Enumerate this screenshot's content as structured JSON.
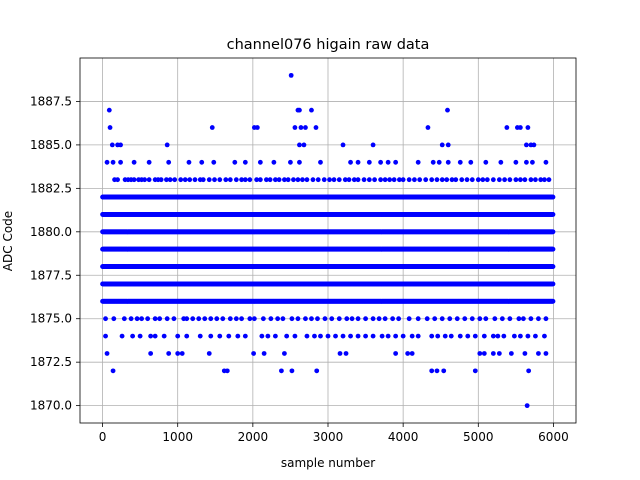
{
  "chart_data": {
    "type": "scatter",
    "title": "channel076 higain raw data",
    "xlabel": "sample number",
    "ylabel": "ADC Code",
    "xlim": [
      -300,
      6300
    ],
    "ylim": [
      1869.0,
      1890.0
    ],
    "xticks": [
      0,
      1000,
      2000,
      3000,
      4000,
      5000,
      6000
    ],
    "xtick_labels": [
      "0",
      "1000",
      "2000",
      "3000",
      "4000",
      "5000",
      "6000"
    ],
    "yticks": [
      1870.0,
      1872.5,
      1875.0,
      1877.5,
      1880.0,
      1882.5,
      1885.0,
      1887.5
    ],
    "ytick_labels": [
      "1870.0",
      "1872.5",
      "1875.0",
      "1877.5",
      "1880.0",
      "1882.5",
      "1885.0",
      "1887.5"
    ],
    "grid": true,
    "marker_color": "#0000ff",
    "n_samples": 6000,
    "value_levels": [
      {
        "adc": 1876,
        "spacing": 1
      },
      {
        "adc": 1877,
        "spacing": 1
      },
      {
        "adc": 1878,
        "spacing": 1
      },
      {
        "adc": 1879,
        "spacing": 1
      },
      {
        "adc": 1880,
        "spacing": 1
      },
      {
        "adc": 1881,
        "spacing": 1
      },
      {
        "adc": 1882,
        "spacing": 1
      }
    ],
    "sparse_points": {
      "1883": [
        160,
        200,
        300,
        340,
        380,
        420,
        480,
        520,
        560,
        620,
        700,
        740,
        780,
        850,
        900,
        960,
        1040,
        1100,
        1160,
        1230,
        1300,
        1340,
        1420,
        1490,
        1560,
        1640,
        1700,
        1780,
        1850,
        1900,
        1960,
        2050,
        2100,
        2180,
        2230,
        2300,
        2350,
        2420,
        2470,
        2540,
        2600,
        2660,
        2720,
        2800,
        2870,
        2950,
        3020,
        3080,
        3150,
        3230,
        3280,
        3350,
        3400,
        3480,
        3550,
        3620,
        3700,
        3760,
        3820,
        3880,
        3950,
        4000,
        4080,
        4150,
        4220,
        4300,
        4380,
        4450,
        4520,
        4580,
        4650,
        4700,
        4780,
        4850,
        4920,
        5000,
        5060,
        5120,
        5200,
        5280,
        5350,
        5420,
        5500,
        5560,
        5620,
        5700,
        5760,
        5830,
        5880,
        5940
      ],
      "1875": [
        40,
        150,
        290,
        380,
        460,
        520,
        600,
        700,
        760,
        860,
        950,
        1080,
        1120,
        1200,
        1280,
        1360,
        1440,
        1520,
        1600,
        1700,
        1780,
        1850,
        1960,
        2020,
        2140,
        2240,
        2330,
        2400,
        2520,
        2600,
        2700,
        2780,
        2860,
        2960,
        3050,
        3150,
        3250,
        3320,
        3400,
        3500,
        3600,
        3680,
        3760,
        3860,
        3940,
        4080,
        4200,
        4320,
        4420,
        4520,
        4620,
        4720,
        4820,
        4920,
        5020,
        5100,
        5220,
        5320,
        5420,
        5540,
        5600,
        5700,
        5800,
        5900
      ],
      "1884": [
        60,
        140,
        240,
        420,
        620,
        880,
        1150,
        1320,
        1480,
        1760,
        1900,
        2100,
        2280,
        2500,
        2620,
        2900,
        3300,
        3400,
        3550,
        3700,
        3800,
        3900,
        4200,
        4400,
        4480,
        4600,
        4760,
        4900,
        5100,
        5300,
        5500,
        5640,
        5720,
        5900
      ],
      "1874": [
        40,
        260,
        400,
        500,
        640,
        700,
        820,
        1000,
        1120,
        1300,
        1440,
        1560,
        1680,
        1800,
        1900,
        2120,
        2200,
        2300,
        2450,
        2560,
        2720,
        2820,
        2900,
        3000,
        3100,
        3200,
        3300,
        3400,
        3500,
        3600,
        3720,
        3800,
        3900,
        4000,
        4120,
        4200,
        4380,
        4460,
        4560,
        4640,
        4760,
        4860,
        4960,
        5080,
        5200,
        5260,
        5340,
        5480,
        5560,
        5660,
        5760,
        5880
      ],
      "1873": [
        60,
        640,
        880,
        1000,
        1060,
        1420,
        2010,
        2150,
        2420,
        3160,
        3240,
        3900,
        4060,
        4120,
        5020,
        5080,
        5200,
        5280,
        5440,
        5620,
        5800,
        5900
      ],
      "1885": [
        130,
        200,
        240,
        860,
        2620,
        2680,
        3200,
        3600,
        4520,
        4600,
        5640,
        5700,
        5740
      ],
      "1886": [
        100,
        1460,
        2020,
        2060,
        2560,
        2640,
        2700,
        2840,
        4330,
        5380,
        5520,
        5560,
        5660
      ],
      "1887": [
        90,
        2600,
        2620,
        2780,
        4590
      ],
      "1889": [
        2510
      ],
      "1872": [
        140,
        1620,
        1660,
        2380,
        2520,
        2850,
        4380,
        4450,
        4540,
        4960,
        5670
      ],
      "1870": [
        5650
      ]
    }
  }
}
